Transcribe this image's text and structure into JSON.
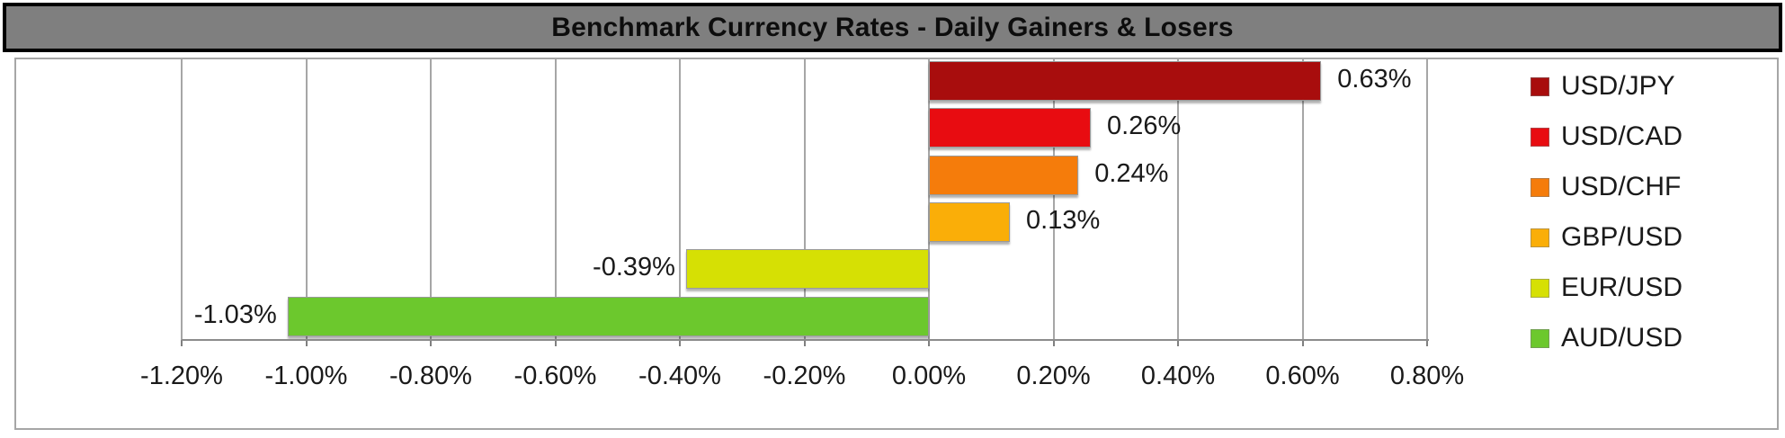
{
  "title": "Benchmark Currency Rates - Daily Gainers & Losers",
  "colors": {
    "title_bg": "#7F7F7F",
    "title_border": "#000000",
    "frame_border": "#A6A6A6",
    "gridline": "#A6A6A6",
    "axis_line": "#8C8C8C",
    "text": "#1a1a1a"
  },
  "chart_data": {
    "type": "bar",
    "orientation": "horizontal",
    "title": "Benchmark Currency Rates - Daily Gainers & Losers",
    "categories": [
      "USD/JPY",
      "USD/CAD",
      "USD/CHF",
      "GBP/USD",
      "EUR/USD",
      "AUD/USD"
    ],
    "values": [
      0.63,
      0.26,
      0.24,
      0.13,
      -0.39,
      -1.03
    ],
    "data_labels": [
      "0.63%",
      "0.26%",
      "0.24%",
      "0.13%",
      "-0.39%",
      "-1.03%"
    ],
    "bar_colors": [
      "#A80D0D",
      "#E80C11",
      "#F57C0B",
      "#FAAE08",
      "#D6E004",
      "#6CC82D"
    ],
    "xlabel": "",
    "ylabel": "",
    "xlim": [
      -1.2,
      0.8
    ],
    "x_tick_step": 0.2,
    "x_tick_labels": [
      "-1.20%",
      "-1.00%",
      "-0.80%",
      "-0.60%",
      "-0.40%",
      "-0.20%",
      "0.00%",
      "0.20%",
      "0.40%",
      "0.60%",
      "0.80%"
    ],
    "grid": true,
    "legend_position": "right",
    "legend": [
      {
        "label": "USD/JPY",
        "color": "#A80D0D"
      },
      {
        "label": "USD/CAD",
        "color": "#E80C11"
      },
      {
        "label": "USD/CHF",
        "color": "#F57C0B"
      },
      {
        "label": "GBP/USD",
        "color": "#FAAE08"
      },
      {
        "label": "EUR/USD",
        "color": "#D6E004"
      },
      {
        "label": "AUD/USD",
        "color": "#6CC82D"
      }
    ]
  }
}
